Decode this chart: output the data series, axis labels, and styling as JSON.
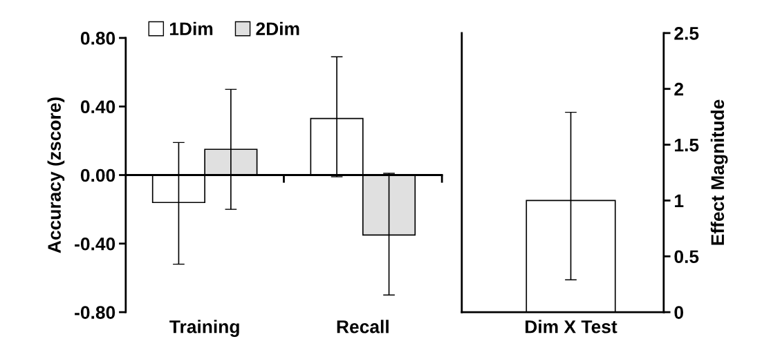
{
  "chart_data": [
    {
      "type": "bar",
      "ylabel": "Accuracy (zscore)",
      "categories": [
        "Training",
        "Recall"
      ],
      "series": [
        {
          "name": "1Dim",
          "color": "#ffffff",
          "values": [
            -0.16,
            0.33
          ],
          "errors": [
            [
              -0.52,
              0.19
            ],
            [
              -0.01,
              0.69
            ]
          ]
        },
        {
          "name": "2Dim",
          "color": "#e0e0e0",
          "values": [
            0.15,
            -0.35
          ],
          "errors": [
            [
              -0.2,
              0.5
            ],
            [
              -0.7,
              0.01
            ]
          ]
        }
      ],
      "ylim": [
        -0.8,
        0.8
      ],
      "yticks": [
        {
          "value": -0.8,
          "label": "-0.80"
        },
        {
          "value": -0.4,
          "label": "-0.40"
        },
        {
          "value": 0,
          "label": "0.00"
        },
        {
          "value": 0.4,
          "label": "0.40"
        },
        {
          "value": 0.8,
          "label": "0.80"
        }
      ],
      "legend": "top",
      "grid": false,
      "ref_lines": [
        {
          "axis": "y",
          "value": 0,
          "color": "#000000"
        }
      ]
    },
    {
      "type": "bar",
      "y2label": "Effect Magnitude",
      "categories": [
        "Dim X Test"
      ],
      "series": [
        {
          "color": "#ffffff",
          "values": [
            1.0
          ],
          "errors": [
            [
              0.29,
              1.79
            ]
          ],
          "axis": "y2"
        }
      ],
      "y2lim": [
        0,
        2.5
      ],
      "y2ticks": [
        0,
        0.5,
        1,
        1.5,
        2,
        2.5
      ],
      "grid": false
    }
  ]
}
